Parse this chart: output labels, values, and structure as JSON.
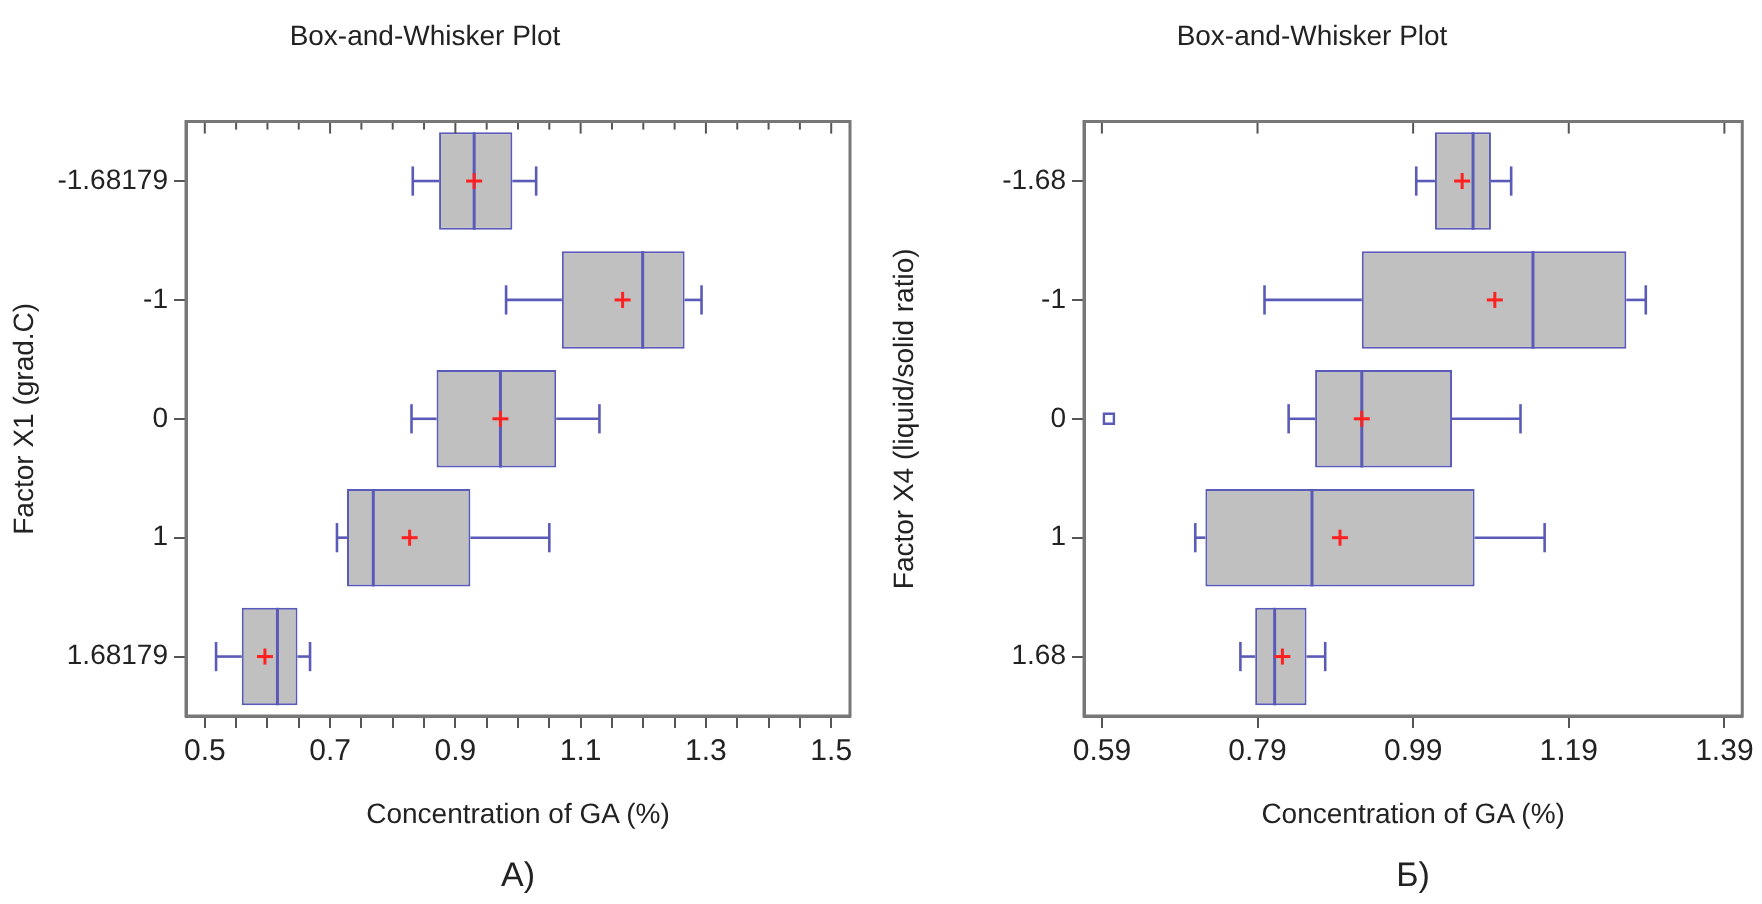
{
  "chart_data": [
    {
      "type": "box",
      "title": "Box-and-Whisker Plot",
      "xlabel": "Concentration of GA (%)",
      "ylabel": "Factor X1 (grad.C)",
      "orientation": "horizontal",
      "color": "#5a5ab8",
      "grid": false,
      "legend": false,
      "categories": [
        "-1.68179",
        "-1",
        "0",
        "1",
        "1.68179"
      ],
      "boxes": [
        {
          "low": 0.832,
          "q1": 0.874,
          "median": 0.93,
          "q3": 0.991,
          "high": 1.029,
          "mean": 0.93
        },
        {
          "low": 0.981,
          "q1": 1.07,
          "median": 1.199,
          "q3": 1.266,
          "high": 1.293,
          "mean": 1.167
        },
        {
          "low": 0.83,
          "q1": 0.87,
          "median": 0.972,
          "q3": 1.061,
          "high": 1.13,
          "mean": 0.972
        },
        {
          "low": 0.711,
          "q1": 0.727,
          "median": 0.769,
          "q3": 0.924,
          "high": 1.05,
          "mean": 0.827
        },
        {
          "low": 0.518,
          "q1": 0.559,
          "median": 0.616,
          "q3": 0.648,
          "high": 0.668,
          "mean": 0.596
        }
      ],
      "xlim": [
        0.47,
        1.53
      ],
      "xticks": [
        0.5,
        {
          "value": 0.55,
          "label": null
        },
        {
          "value": 0.6,
          "label": null
        },
        {
          "value": 0.65,
          "label": null
        },
        0.7,
        {
          "value": 0.75,
          "label": null
        },
        {
          "value": 0.8,
          "label": null
        },
        {
          "value": 0.85,
          "label": null
        },
        0.9,
        {
          "value": 0.95,
          "label": null
        },
        {
          "value": 1.0,
          "label": null
        },
        {
          "value": 1.05,
          "label": null
        },
        1.1,
        {
          "value": 1.15,
          "label": null
        },
        {
          "value": 1.2,
          "label": null
        },
        {
          "value": 1.25,
          "label": null
        },
        1.3,
        {
          "value": 1.35,
          "label": null
        },
        {
          "value": 1.4,
          "label": null
        },
        {
          "value": 1.45,
          "label": null
        },
        1.5
      ],
      "annotations": [
        "А)"
      ]
    },
    {
      "type": "box",
      "title": "Box-and-Whisker Plot",
      "xlabel": "Concentration of GA (%)",
      "ylabel": "Factor X4 (liquid/solid ratio)",
      "orientation": "horizontal",
      "color": "#5a5ab8",
      "grid": false,
      "legend": false,
      "categories": [
        "-1.68",
        "-1",
        "0",
        "1",
        "1.68"
      ],
      "boxes": [
        {
          "low": 0.994,
          "q1": 1.018,
          "median": 1.067,
          "q3": 1.09,
          "high": 1.116,
          "mean": 1.053
        },
        {
          "low": 0.799,
          "q1": 0.924,
          "median": 1.144,
          "q3": 1.264,
          "high": 1.289,
          "mean": 1.095
        },
        {
          "low": 0.83,
          "q1": 0.864,
          "median": 0.924,
          "q3": 1.04,
          "high": 1.128,
          "mean": 0.924,
          "outliers": [
            0.599
          ]
        },
        {
          "low": 0.71,
          "q1": 0.723,
          "median": 0.86,
          "q3": 1.069,
          "high": 1.159,
          "mean": 0.896
        },
        {
          "low": 0.768,
          "q1": 0.787,
          "median": 0.812,
          "q3": 0.853,
          "high": 0.877,
          "mean": 0.822
        }
      ],
      "xlim": [
        0.567,
        1.413
      ],
      "xticks": [
        0.59,
        0.79,
        0.99,
        1.19,
        1.39
      ],
      "annotations": [
        "Б)"
      ]
    }
  ]
}
